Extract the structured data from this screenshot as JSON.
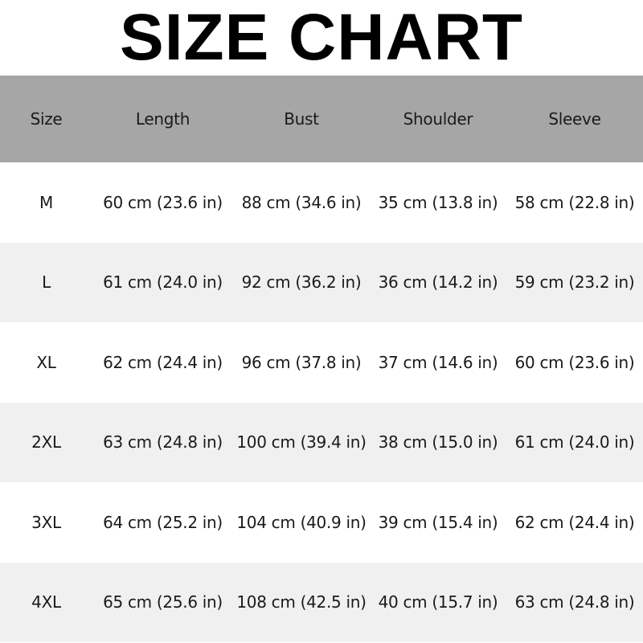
{
  "title": "SIZE CHART",
  "headers": [
    "Size",
    "Length",
    "Bust",
    "Shoulder",
    "Sleeve"
  ],
  "rows": [
    [
      "M",
      "60 cm (23.6 in)",
      "88 cm (34.6 in)",
      "35 cm (13.8 in)",
      "58 cm (22.8 in)"
    ],
    [
      "L",
      "61 cm (24.0 in)",
      "92 cm (36.2 in)",
      "36 cm (14.2 in)",
      "59 cm (23.2 in)"
    ],
    [
      "XL",
      "62 cm (24.4 in)",
      "96 cm (37.8 in)",
      "37 cm (14.6 in)",
      "60 cm (23.6 in)"
    ],
    [
      "2XL",
      "63 cm (24.8 in)",
      "100 cm (39.4 in)",
      "38 cm (15.0 in)",
      "61 cm (24.0 in)"
    ],
    [
      "3XL",
      "64 cm (25.2 in)",
      "104 cm (40.9 in)",
      "39 cm (15.4 in)",
      "62 cm (24.4 in)"
    ],
    [
      "4XL",
      "65 cm (25.6 in)",
      "108 cm (42.5 in)",
      "40 cm (15.7 in)",
      "63 cm (24.8 in)"
    ]
  ],
  "colors": {
    "header_bg": "#a6a6a6",
    "alt_row_bg": "#f0f0f0"
  }
}
